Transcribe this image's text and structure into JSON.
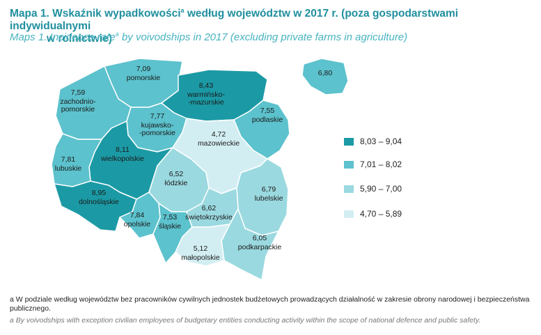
{
  "title": {
    "pl_main": "Mapa 1. Wskaźnik wypadkowości",
    "pl_sup": "a",
    "pl_rest_line1": " według województw w 2017 r. (poza gospodarstwami indywidualnymi",
    "pl_rest_line2": "w rolnictwie)",
    "en_main": "Maps 1. Incidence rate",
    "en_sup": "a",
    "en_rest": " by voivodships in 2017 (excluding private farms in agriculture)"
  },
  "colors": {
    "class_1": "#1b9aa5",
    "class_2": "#5cc2cd",
    "class_3": "#9bd9e0",
    "class_4": "#d3eef2",
    "border": "#ffffff"
  },
  "legend": [
    {
      "label": "8,03 – 9,04",
      "color": "#1b9aa5"
    },
    {
      "label": "7,01 – 8,02",
      "color": "#5cc2cd"
    },
    {
      "label": "5,90 – 7,00",
      "color": "#9bd9e0"
    },
    {
      "label": "4,70 – 5,89",
      "color": "#d3eef2"
    }
  ],
  "regions": [
    {
      "name": "pomorskie",
      "value": "7,09",
      "color": "#5cc2cd"
    },
    {
      "name": "warmińsko-\n-mazurskie",
      "value": "8,43",
      "color": "#1b9aa5"
    },
    {
      "name": "zachodnio-\npomorskie",
      "value": "7,59",
      "color": "#5cc2cd"
    },
    {
      "name": "kujawsko-\n-pomorskie",
      "value": "7,77",
      "color": "#5cc2cd"
    },
    {
      "name": "podlaskie",
      "value": "7,55",
      "color": "#5cc2cd"
    },
    {
      "name": "mazowieckie",
      "value": "4,72",
      "color": "#d3eef2"
    },
    {
      "name": "wielkopolskie",
      "value": "8,11",
      "color": "#1b9aa5"
    },
    {
      "name": "lubuskie",
      "value": "7,81",
      "color": "#5cc2cd"
    },
    {
      "name": "łódzkie",
      "value": "6,52",
      "color": "#9bd9e0"
    },
    {
      "name": "lubelskie",
      "value": "6,79",
      "color": "#9bd9e0"
    },
    {
      "name": "dolnośląskie",
      "value": "8,95",
      "color": "#1b9aa5"
    },
    {
      "name": "opolskie",
      "value": "7,84",
      "color": "#5cc2cd"
    },
    {
      "name": "śląskie",
      "value": "7,53",
      "color": "#5cc2cd"
    },
    {
      "name": "świętokrzyskie",
      "value": "6,62",
      "color": "#9bd9e0"
    },
    {
      "name": "podkarpackie",
      "value": "6,05",
      "color": "#9bd9e0"
    },
    {
      "name": "małopolskie",
      "value": "5,12",
      "color": "#d3eef2"
    },
    {
      "name": "",
      "value": "6,80",
      "color": "#5cc2cd"
    }
  ],
  "footnote": {
    "pl": "a W podziale według województw bez pracowników cywilnych jednostek budżetowych prowadzących działalność w zakresie obrony narodowej i bezpieczeństwa publicznego.",
    "en": "a By voivodships with exception civilian employees of budgetary entities conducting activity within the scope of national defence and public safety."
  }
}
